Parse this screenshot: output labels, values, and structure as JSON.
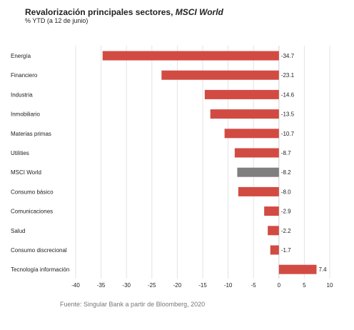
{
  "header": {
    "title_main": "Revalorización principales sectores, ",
    "title_em": "MSCI World",
    "subtitle": "% YTD  (a 12 de junio)"
  },
  "footer": {
    "source": "Fuente: Singular Bank a partir de Bloomberg, 2020"
  },
  "colors": {
    "bar": "#d24b43",
    "highlight": "#7f7f7f"
  },
  "chart_data": {
    "type": "bar",
    "orientation": "horizontal",
    "title": "Revalorización principales sectores, MSCI World",
    "subtitle": "% YTD  (a 12 de junio)",
    "categories": [
      "Energía",
      "Financiero",
      "Industria",
      "Inmobiliario",
      "Materias primas",
      "Utilities",
      "MSCI World",
      "Consumo básico",
      "Comunicaciones",
      "Salud",
      "Consumo discrecional",
      "Tecnología información"
    ],
    "values": [
      -34.7,
      -23.1,
      -14.6,
      -13.5,
      -10.7,
      -8.7,
      -8.2,
      -8.0,
      -2.9,
      -2.2,
      -1.7,
      7.4
    ],
    "value_labels": [
      "-34.7",
      "-23.1",
      "-14.6",
      "-13.5",
      "-10.7",
      "-8.7",
      "-8.2",
      "-8.0",
      "-2.9",
      "-2.2",
      "-1.7",
      "7.4"
    ],
    "highlight_category": "MSCI World",
    "xlim": [
      -40,
      10
    ],
    "xticks": [
      -40,
      -35,
      -30,
      -25,
      -20,
      -15,
      -10,
      -5,
      0,
      5,
      10
    ],
    "grid": true,
    "legend": "none"
  }
}
